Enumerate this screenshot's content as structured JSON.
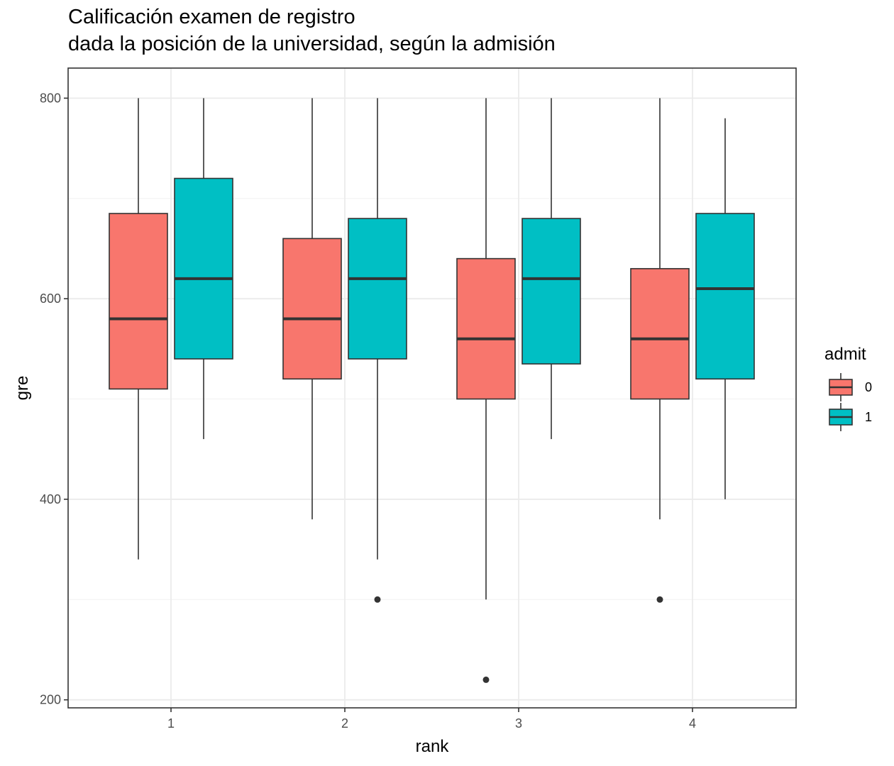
{
  "title_line1": "Calificación examen de registro",
  "title_line2": "dada la posición de la universidad, según la admisión",
  "chart_data": {
    "type": "boxplot",
    "xlabel": "rank",
    "ylabel": "gre",
    "categories": [
      "1",
      "2",
      "3",
      "4"
    ],
    "yticks": [
      200,
      400,
      600,
      800
    ],
    "ylim": [
      192,
      830
    ],
    "legend": {
      "title": "admit",
      "position": "right"
    },
    "grid": true,
    "series": [
      {
        "name": "0",
        "color": "#F8766D",
        "boxes": [
          {
            "category": "1",
            "min": 340,
            "q1": 510,
            "median": 580,
            "q3": 685,
            "max": 800,
            "outliers": []
          },
          {
            "category": "2",
            "min": 380,
            "q1": 520,
            "median": 580,
            "q3": 660,
            "max": 800,
            "outliers": []
          },
          {
            "category": "3",
            "min": 300,
            "q1": 500,
            "median": 560,
            "q3": 640,
            "max": 800,
            "outliers": [
              220
            ]
          },
          {
            "category": "4",
            "min": 380,
            "q1": 500,
            "median": 560,
            "q3": 630,
            "max": 800,
            "outliers": [
              300
            ]
          }
        ]
      },
      {
        "name": "1",
        "color": "#00BFC4",
        "boxes": [
          {
            "category": "1",
            "min": 460,
            "q1": 540,
            "median": 620,
            "q3": 720,
            "max": 800,
            "outliers": []
          },
          {
            "category": "2",
            "min": 340,
            "q1": 540,
            "median": 620,
            "q3": 680,
            "max": 800,
            "outliers": [
              300
            ]
          },
          {
            "category": "3",
            "min": 460,
            "q1": 535,
            "median": 620,
            "q3": 680,
            "max": 800,
            "outliers": []
          },
          {
            "category": "4",
            "min": 400,
            "q1": 520,
            "median": 610,
            "q3": 685,
            "max": 780,
            "outliers": []
          }
        ]
      }
    ]
  }
}
